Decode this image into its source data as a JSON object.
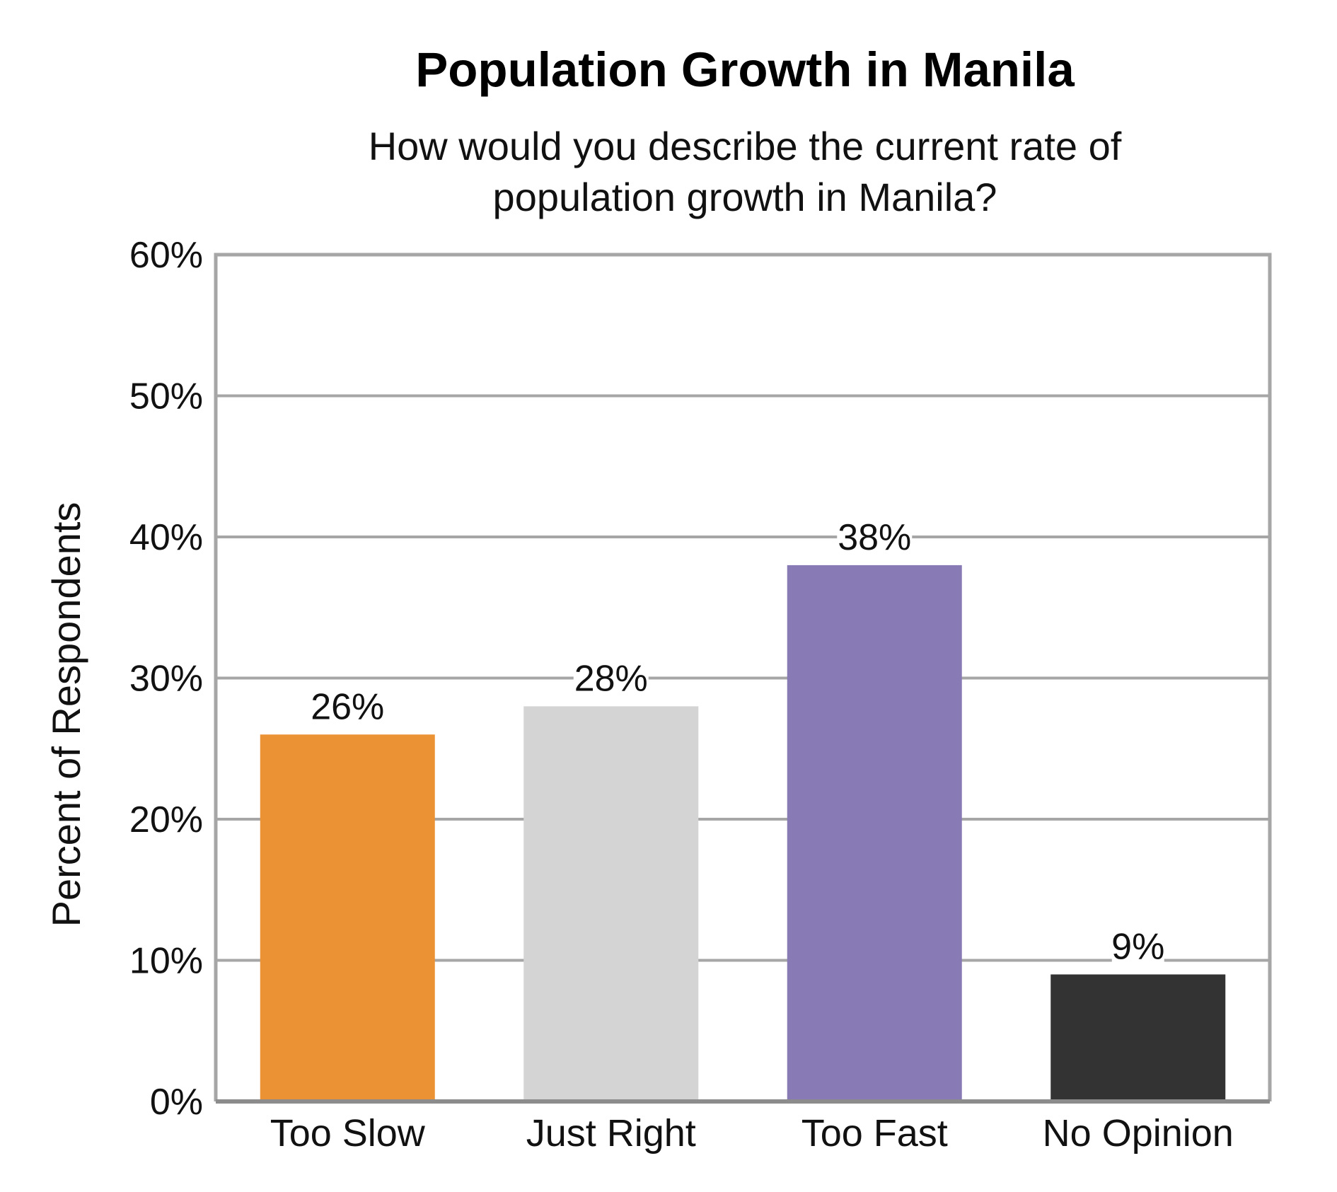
{
  "chart_data": {
    "type": "bar",
    "title": "Population Growth in Manila",
    "subtitle_lines": [
      "How would you describe the current rate of",
      "population growth in Manila?"
    ],
    "xlabel": "",
    "ylabel": "Percent of Respondents",
    "categories": [
      "Too Slow",
      "Just Right",
      "Too Fast",
      "No Opinion"
    ],
    "values": [
      26,
      28,
      38,
      9
    ],
    "data_labels": [
      "26%",
      "28%",
      "38%",
      "9%"
    ],
    "colors": [
      "#EB9234",
      "#D4D4D4",
      "#887BB5",
      "#333333"
    ],
    "ylim": [
      0,
      60
    ],
    "yticks": [
      0,
      10,
      20,
      30,
      40,
      50,
      60
    ],
    "ytick_labels": [
      "0%",
      "10%",
      "20%",
      "30%",
      "40%",
      "50%",
      "60%"
    ],
    "grid": true,
    "legend": "none",
    "frame_color": "#A6A6A6",
    "grid_color": "#A6A6A6"
  }
}
